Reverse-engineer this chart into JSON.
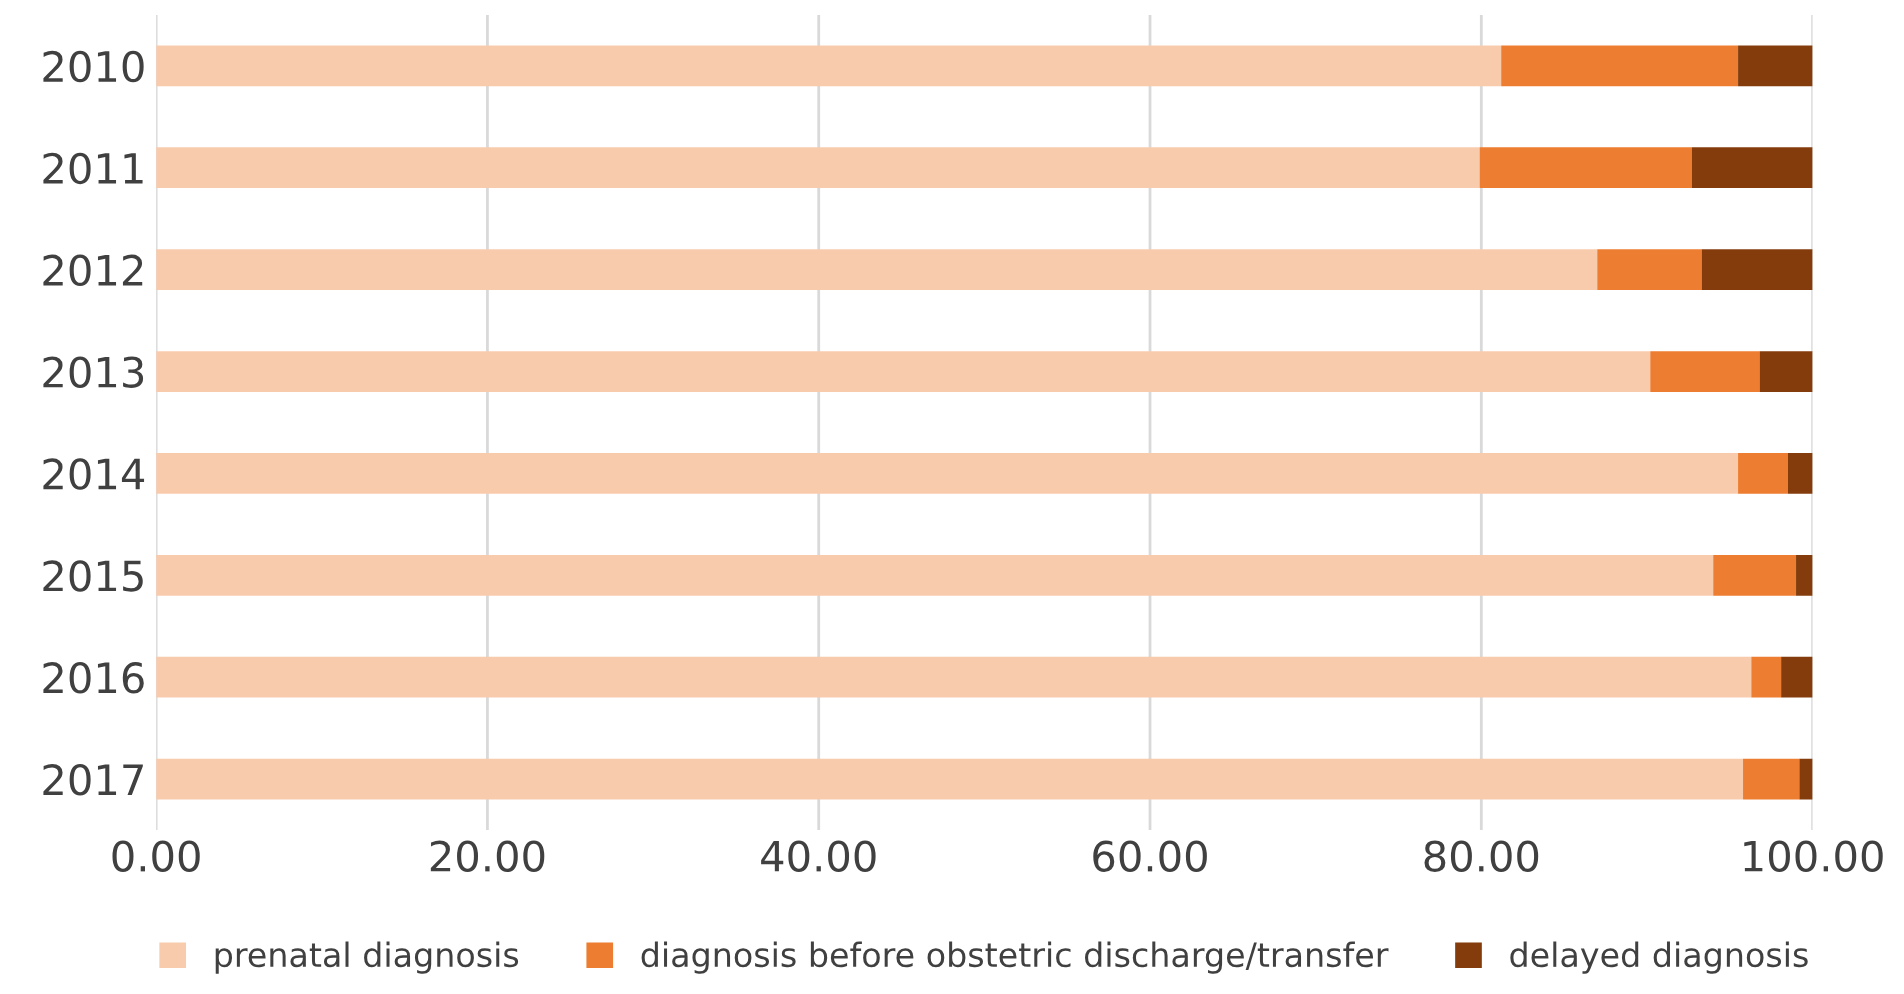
{
  "chart_data": {
    "type": "bar",
    "orientation": "horizontal",
    "stacked": true,
    "categories": [
      "2010",
      "2011",
      "2012",
      "2013",
      "2014",
      "2015",
      "2016",
      "2017"
    ],
    "series": [
      {
        "name": "prenatal diagnosis",
        "color": "#f8cbad",
        "values": [
          81.2,
          79.9,
          87.0,
          90.2,
          95.5,
          94.0,
          96.3,
          95.8
        ]
      },
      {
        "name": "diagnosis before obstetric discharge/transfer",
        "color": "#ed7d31",
        "values": [
          14.3,
          12.8,
          6.3,
          6.6,
          3.0,
          5.0,
          1.8,
          3.4
        ]
      },
      {
        "name": "delayed diagnosis",
        "color": "#843c0c",
        "values": [
          4.5,
          7.3,
          6.7,
          3.2,
          1.5,
          1.0,
          1.9,
          0.8
        ]
      }
    ],
    "xlim": [
      0,
      100
    ],
    "xticks": [
      {
        "value": 0,
        "label": "0.00"
      },
      {
        "value": 20,
        "label": "20.00"
      },
      {
        "value": 40,
        "label": "40.00"
      },
      {
        "value": 60,
        "label": "60.00"
      },
      {
        "value": 80,
        "label": "80.00"
      },
      {
        "value": 100,
        "label": "100.00"
      }
    ],
    "grid": "x",
    "legend": "bottom"
  }
}
